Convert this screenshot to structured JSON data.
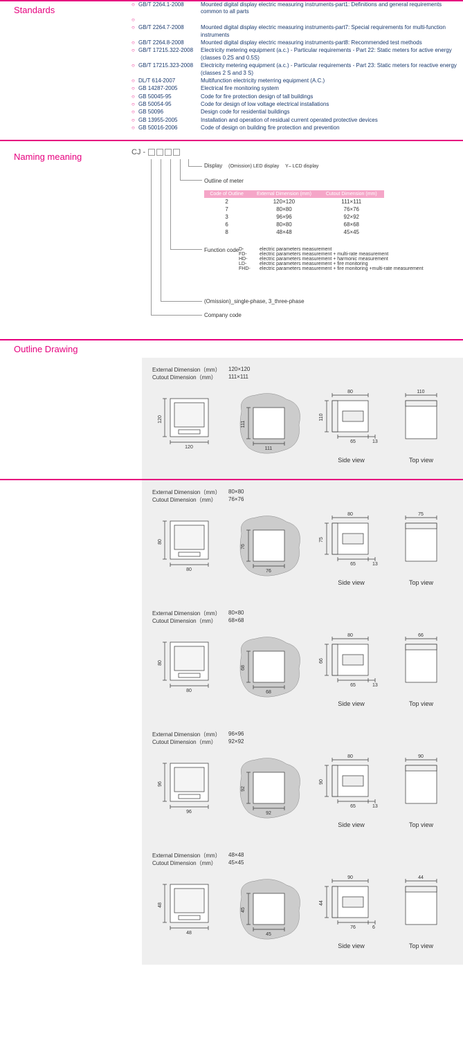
{
  "sections": {
    "standards": "Standards",
    "naming": "Naming meaning",
    "outline": "Outline Drawing"
  },
  "standards": [
    {
      "code": "GB/T 2264.1-2008",
      "desc": "Mounted digital display electric measuring instruments-part1: Definitions and general requirements common to all parts"
    },
    {
      "code": "",
      "desc": ""
    },
    {
      "code": "GB/T 2264.7-2008",
      "desc": "Mounted digital display electric measuring instruments-part7: Special requirements for multi-function instruments"
    },
    {
      "code": "GB/T 2264.8-2008",
      "desc": "Mounted digital display electric measuring instruments-part8: Recommended test methods"
    },
    {
      "code": "GB/T 17215.322-2008",
      "desc": "Electricity metering equipment (a.c.) - Particular requirements - Part 22: Static meters for active energy (classes 0.2S and 0.5S)"
    },
    {
      "code": "GB/T 17215.323-2008",
      "desc": "Electricity metering equipment (a.c.) - Particular requirements - Part 23: Static meters for reactive energy (classes 2 S and 3 S)"
    },
    {
      "code": "DL/T 614-2007",
      "desc": "Multifunction electricity meterring equipment (A.C.)"
    },
    {
      "code": "GB 14287-2005",
      "desc": "Electrical fire monitoring system"
    },
    {
      "code": "GB 50045-95",
      "desc": "Code for fire protection design of tall buildings"
    },
    {
      "code": "GB 50054-95",
      "desc": "Code for design of low voltage electrical installations"
    },
    {
      "code": "GB 50096",
      "desc": "Design code for residential buildings"
    },
    {
      "code": "GB 13955-2005",
      "desc": "Installation and operation of residual current operated protective devices"
    },
    {
      "code": "GB 50016-2006",
      "desc": "Code of design on building fire protection and prevention"
    }
  ],
  "naming": {
    "prefix": "CJ",
    "display_label": "Display",
    "display_note": "(Omission) LED display",
    "display_y": "Y– LCD display",
    "outline_label": "Outline of meter",
    "table_headers": [
      "Code of Outline",
      "External Dimension (mm)",
      "Cutout Dimension (mm)"
    ],
    "table_rows": [
      [
        "2",
        "120×120",
        "111×111"
      ],
      [
        "7",
        "80×80",
        "76×76"
      ],
      [
        "3",
        "96×96",
        "92×92"
      ],
      [
        "6",
        "80×80",
        "68×68"
      ],
      [
        "8",
        "48×48",
        "45×45"
      ]
    ],
    "function_label": "Function code",
    "functions": [
      [
        "D-",
        "electric parameters measurement"
      ],
      [
        "FD-",
        "electric parameters measurement + multi-rate measurement"
      ],
      [
        "HD-",
        "electric parameters measurement + harmonic measurement"
      ],
      [
        "LD-",
        "electric parameters measurement + fire monitoring"
      ],
      [
        "FHD-",
        "electric parameters measurement + fire monitoring +multi-rate measurement"
      ]
    ],
    "phase_label": "(Omission)_single-phase, 3_three-phase",
    "company_label": "Company code"
  },
  "drawings": [
    {
      "ext": "120×120",
      "cut": "111×111",
      "front_w": "120",
      "front_h": "120",
      "cutout_w": "111",
      "cutout_h": "111",
      "side_w": "80",
      "side_h": "110",
      "side_d": "65",
      "side_t": "13",
      "top_w": "110"
    },
    {
      "ext": "80×80",
      "cut": "76×76",
      "front_w": "80",
      "front_h": "80",
      "cutout_w": "76",
      "cutout_h": "76",
      "side_w": "80",
      "side_h": "75",
      "side_d": "65",
      "side_t": "13",
      "top_w": "75"
    },
    {
      "ext": "80×80",
      "cut": "68×68",
      "front_w": "80",
      "front_h": "80",
      "cutout_w": "68",
      "cutout_h": "68",
      "side_w": "80",
      "side_h": "66",
      "side_d": "65",
      "side_t": "13",
      "top_w": "66"
    },
    {
      "ext": "96×96",
      "cut": "92×92",
      "front_w": "96",
      "front_h": "96",
      "cutout_w": "92",
      "cutout_h": "92",
      "side_w": "80",
      "side_h": "90",
      "side_d": "65",
      "side_t": "13",
      "top_w": "90"
    },
    {
      "ext": "48×48",
      "cut": "45×45",
      "front_w": "48",
      "front_h": "48",
      "cutout_w": "45",
      "cutout_h": "45",
      "side_w": "90",
      "side_h": "44",
      "side_d": "76",
      "side_t": "6",
      "top_w": "44"
    }
  ],
  "labels": {
    "ext_dim": "External Dimension（mm）",
    "cut_dim": "Cutout    Dimension（mm）",
    "side": "Side view",
    "top": "Top view"
  }
}
